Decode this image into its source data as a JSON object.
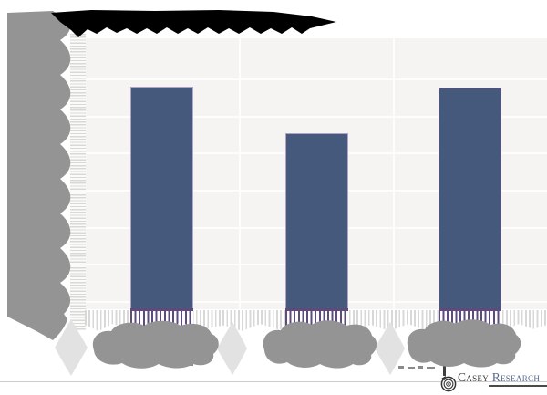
{
  "chart_data": {
    "type": "bar",
    "title": "",
    "title_note": "chart title is obscured by a black scribble redaction",
    "categories": [
      "",
      "",
      ""
    ],
    "categories_note": "x-axis category labels are obscured by gray cloud-shaped redaction blobs",
    "y_axis_note": "y-axis tick labels are obscured by a gray blob and a shredded-stripe column",
    "series": [
      {
        "name": "bars",
        "values_pct_of_plot_height": [
          83.7,
          68.1,
          83.4
        ]
      }
    ],
    "ylim": [
      0,
      100
    ],
    "n_categories": 3,
    "n_h_gridlines": 7,
    "grid": true,
    "legend": "none"
  },
  "branding": {
    "name_part1": "Casey",
    "name_part2": "Research"
  },
  "colors": {
    "bar_fill": "#45597d",
    "bar_border": "#b2a2c8",
    "plot_bg": "#f5f4f2",
    "gridline": "#fdfdfc",
    "redaction_black": "#000000",
    "redaction_gray": "#949494",
    "redaction_light_diamond": "#e2e2e2",
    "fringe_purple": "#5d4b7e",
    "fringe_gray": "#d8d8d8",
    "separator": "#cccccc",
    "logo_casey": "#3a3a3a",
    "logo_research": "#53688e"
  }
}
